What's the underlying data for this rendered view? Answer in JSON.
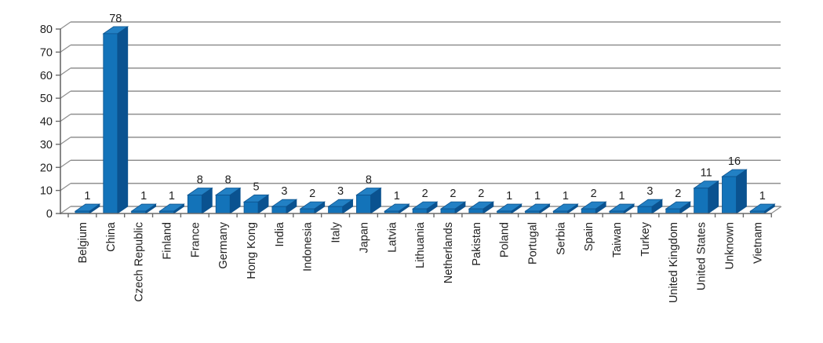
{
  "chart_data": {
    "type": "bar",
    "style": "3d-column",
    "title": "",
    "xlabel": "",
    "ylabel": "",
    "categories": [
      "Belgium",
      "China",
      "Czech Republic",
      "Finland",
      "France",
      "Germany",
      "Hong Kong",
      "India",
      "Indonesia",
      "Italy",
      "Japan",
      "Latvia",
      "Lithuania",
      "Netherlands",
      "Pakistan",
      "Poland",
      "Portugal",
      "Serbia",
      "Spain",
      "Taiwan",
      "Turkey",
      "United Kingdom",
      "United States",
      "Unknown",
      "Vietnam"
    ],
    "values": [
      1,
      78,
      1,
      1,
      8,
      8,
      5,
      3,
      2,
      3,
      8,
      1,
      2,
      2,
      2,
      1,
      1,
      1,
      2,
      1,
      3,
      2,
      11,
      16,
      1
    ],
    "data_labels_shown": true,
    "ylim": [
      0,
      80
    ],
    "yticks": [
      0,
      10,
      20,
      30,
      40,
      50,
      60,
      70,
      80
    ],
    "grid": "horizontal",
    "legend": "none",
    "colors": {
      "bar_front": "#1373B9",
      "bar_top": "#2280C4",
      "bar_side": "#0A5290",
      "bar_outline": "#0D538E",
      "gridline": "#909090",
      "axis": "#6A6A6A",
      "text": "#1F1F1F",
      "background": "#FFFFFF"
    }
  }
}
